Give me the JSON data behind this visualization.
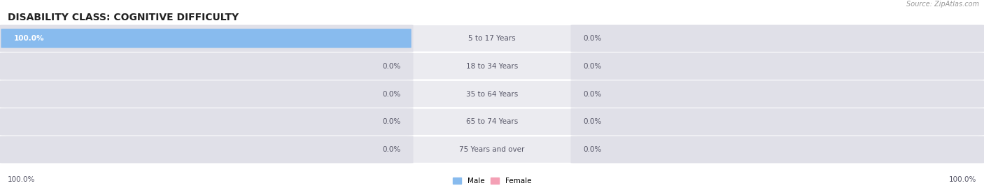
{
  "title": "DISABILITY CLASS: COGNITIVE DIFFICULTY",
  "source": "Source: ZipAtlas.com",
  "categories": [
    "5 to 17 Years",
    "18 to 34 Years",
    "35 to 64 Years",
    "65 to 74 Years",
    "75 Years and over"
  ],
  "male_values": [
    100.0,
    0.0,
    0.0,
    0.0,
    0.0
  ],
  "female_values": [
    0.0,
    0.0,
    0.0,
    0.0,
    0.0
  ],
  "male_color": "#88bbee",
  "female_color": "#f4a0b5",
  "male_label": "Male",
  "female_label": "Female",
  "bar_bg_color": "#e0e0e8",
  "row_bg_color": "#ebebf0",
  "max_val": 100.0,
  "left_label_100": "100.0%",
  "right_label_100": "100.0%",
  "title_fontsize": 10,
  "label_fontsize": 7.5,
  "cat_fontsize": 7.5,
  "source_fontsize": 7,
  "figsize": [
    14.06,
    2.69
  ],
  "dpi": 100
}
